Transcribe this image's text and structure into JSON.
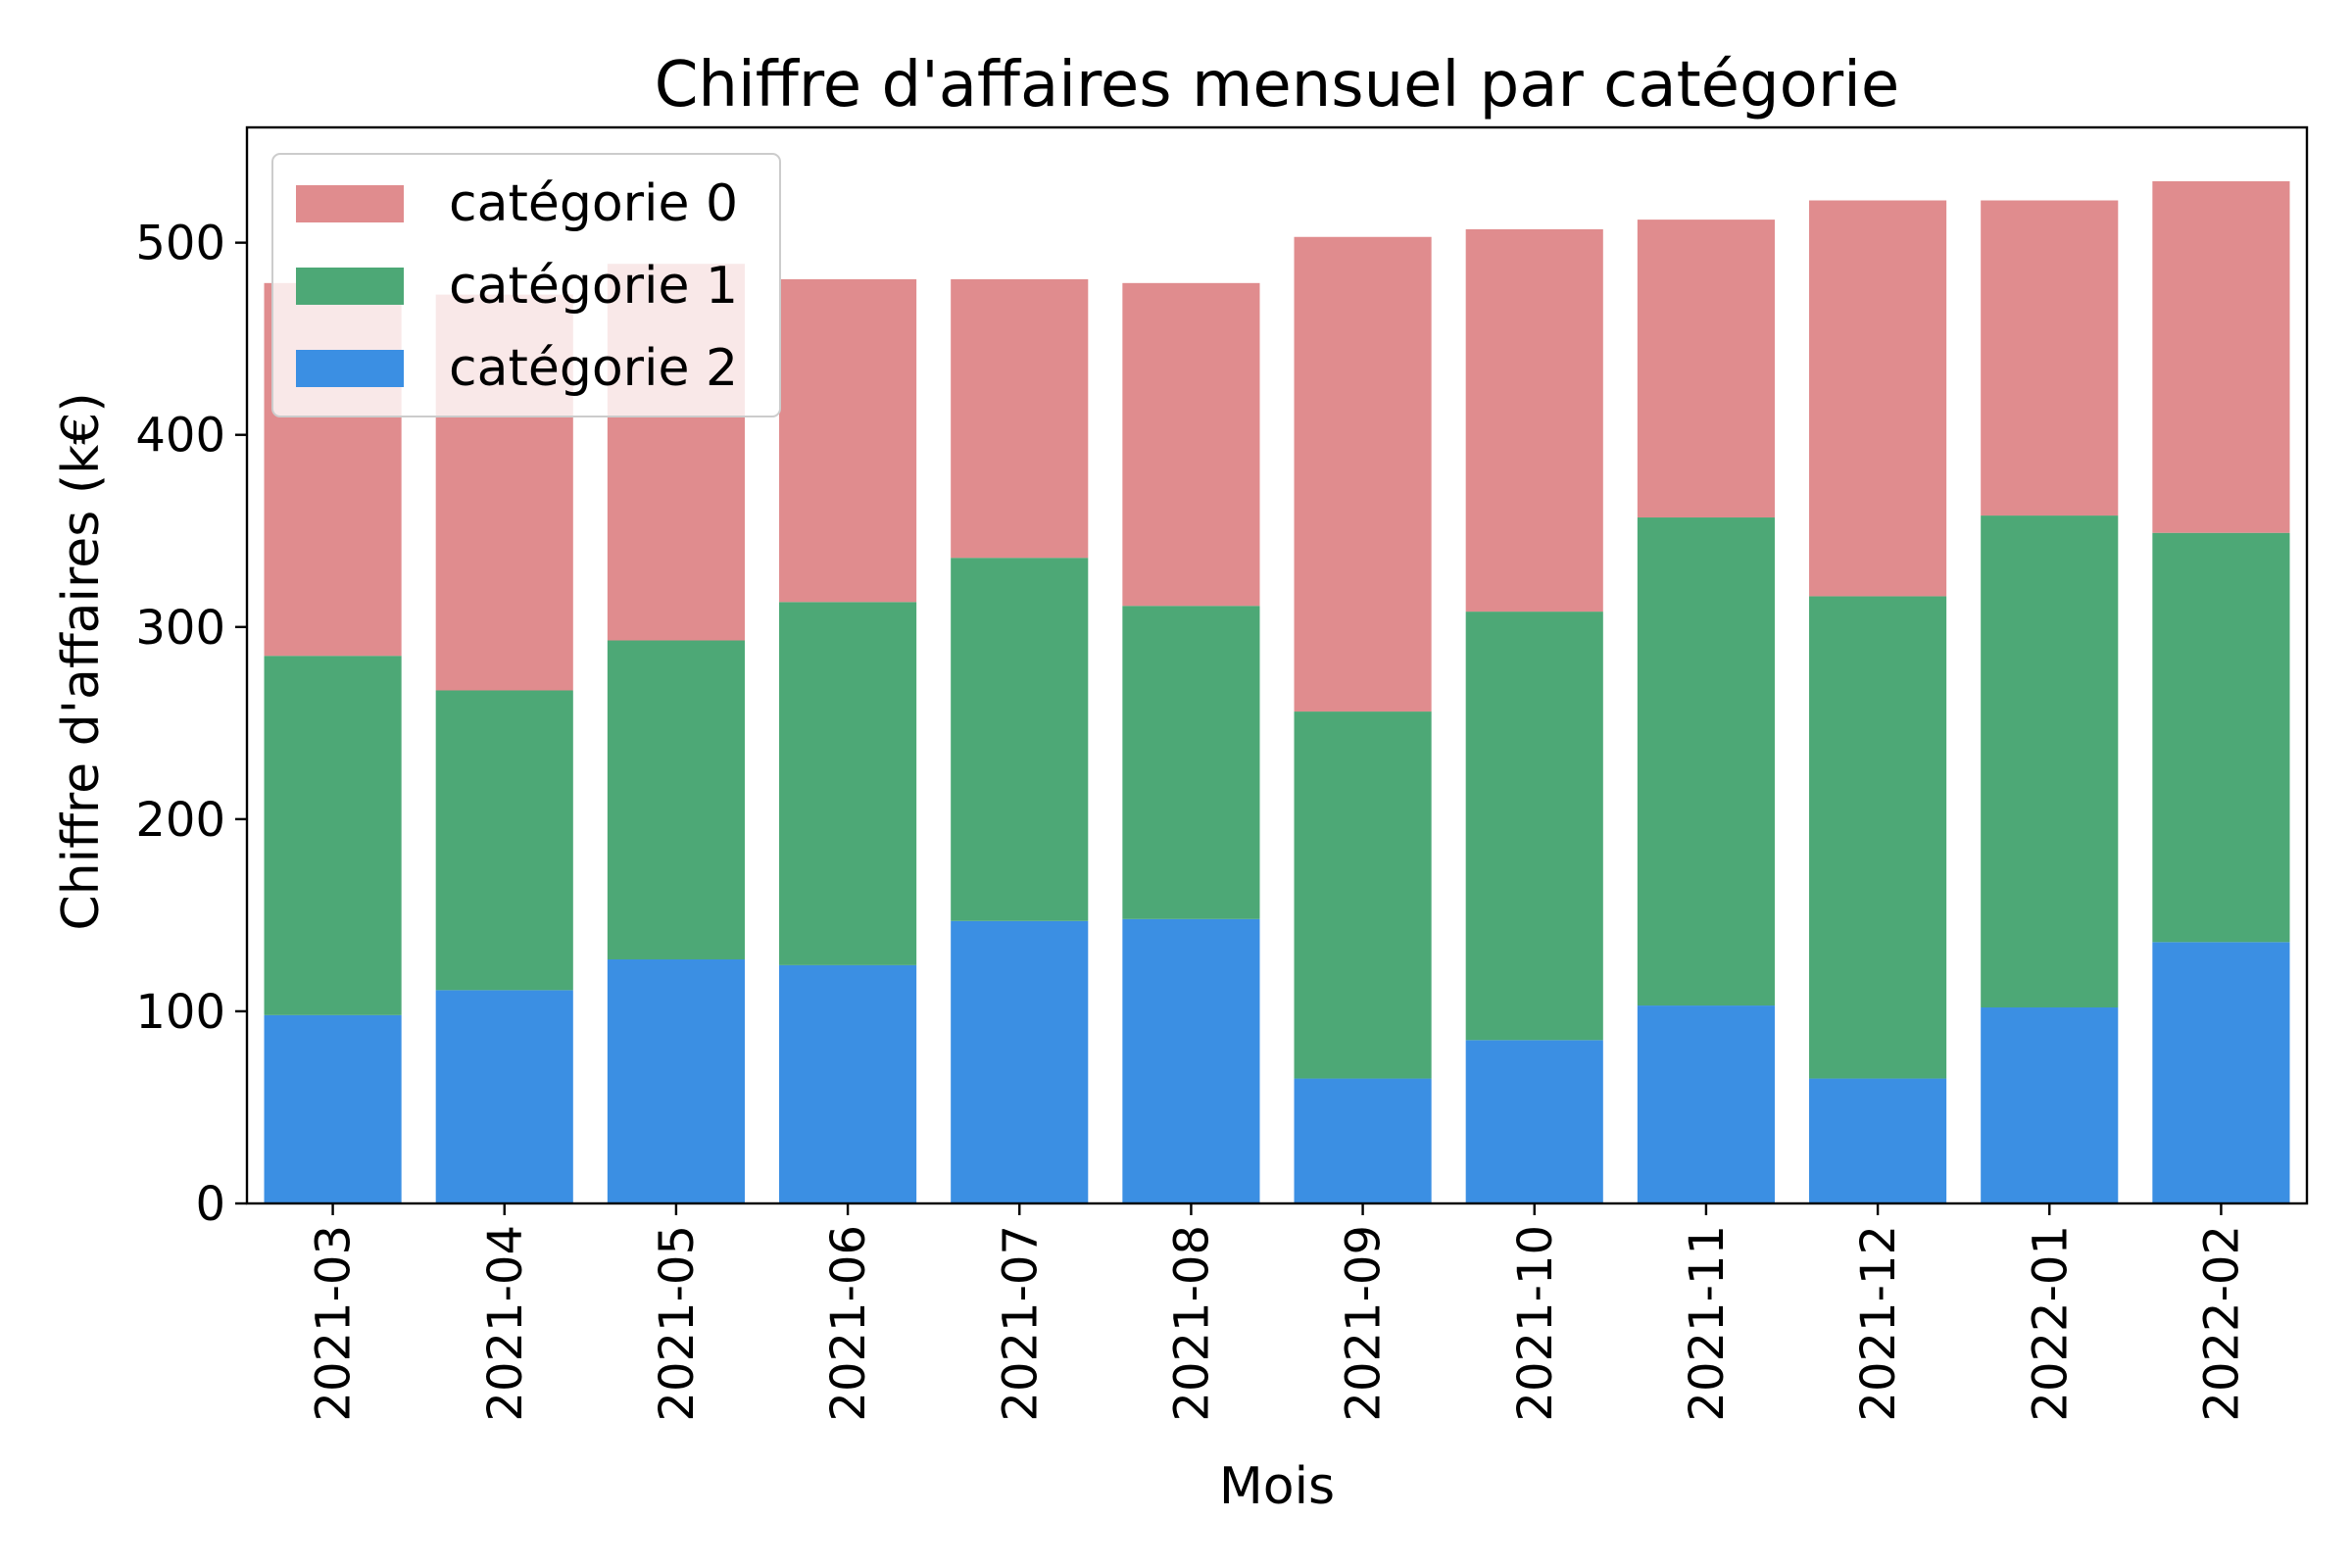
{
  "chart_data": {
    "type": "bar",
    "stacked": true,
    "title": "Chiffre d'affaires mensuel par catégorie",
    "xlabel": "Mois",
    "ylabel": "Chiffre d'affaires (k€)",
    "categories": [
      "2021-03",
      "2021-04",
      "2021-05",
      "2021-06",
      "2021-07",
      "2021-08",
      "2021-09",
      "2021-10",
      "2021-11",
      "2021-12",
      "2022-01",
      "2022-02"
    ],
    "series": [
      {
        "name": "catégorie 2",
        "color": "#3b8fe3",
        "values": [
          98,
          111,
          127,
          124,
          147,
          148,
          65,
          85,
          103,
          65,
          102,
          136
        ]
      },
      {
        "name": "catégorie 1",
        "color": "#4da876",
        "values": [
          187,
          156,
          166,
          189,
          189,
          163,
          191,
          223,
          254,
          251,
          256,
          213
        ]
      },
      {
        "name": "catégorie 0",
        "color": "#e08c8e",
        "values": [
          194,
          206,
          196,
          168,
          145,
          168,
          247,
          199,
          155,
          206,
          164,
          183
        ]
      }
    ],
    "legend_order": [
      "catégorie 0",
      "catégorie 1",
      "catégorie 2"
    ],
    "ylim": [
      0,
      560
    ],
    "yticks": [
      0,
      100,
      200,
      300,
      400,
      500
    ],
    "grid": false,
    "legend_position": "top-left"
  }
}
